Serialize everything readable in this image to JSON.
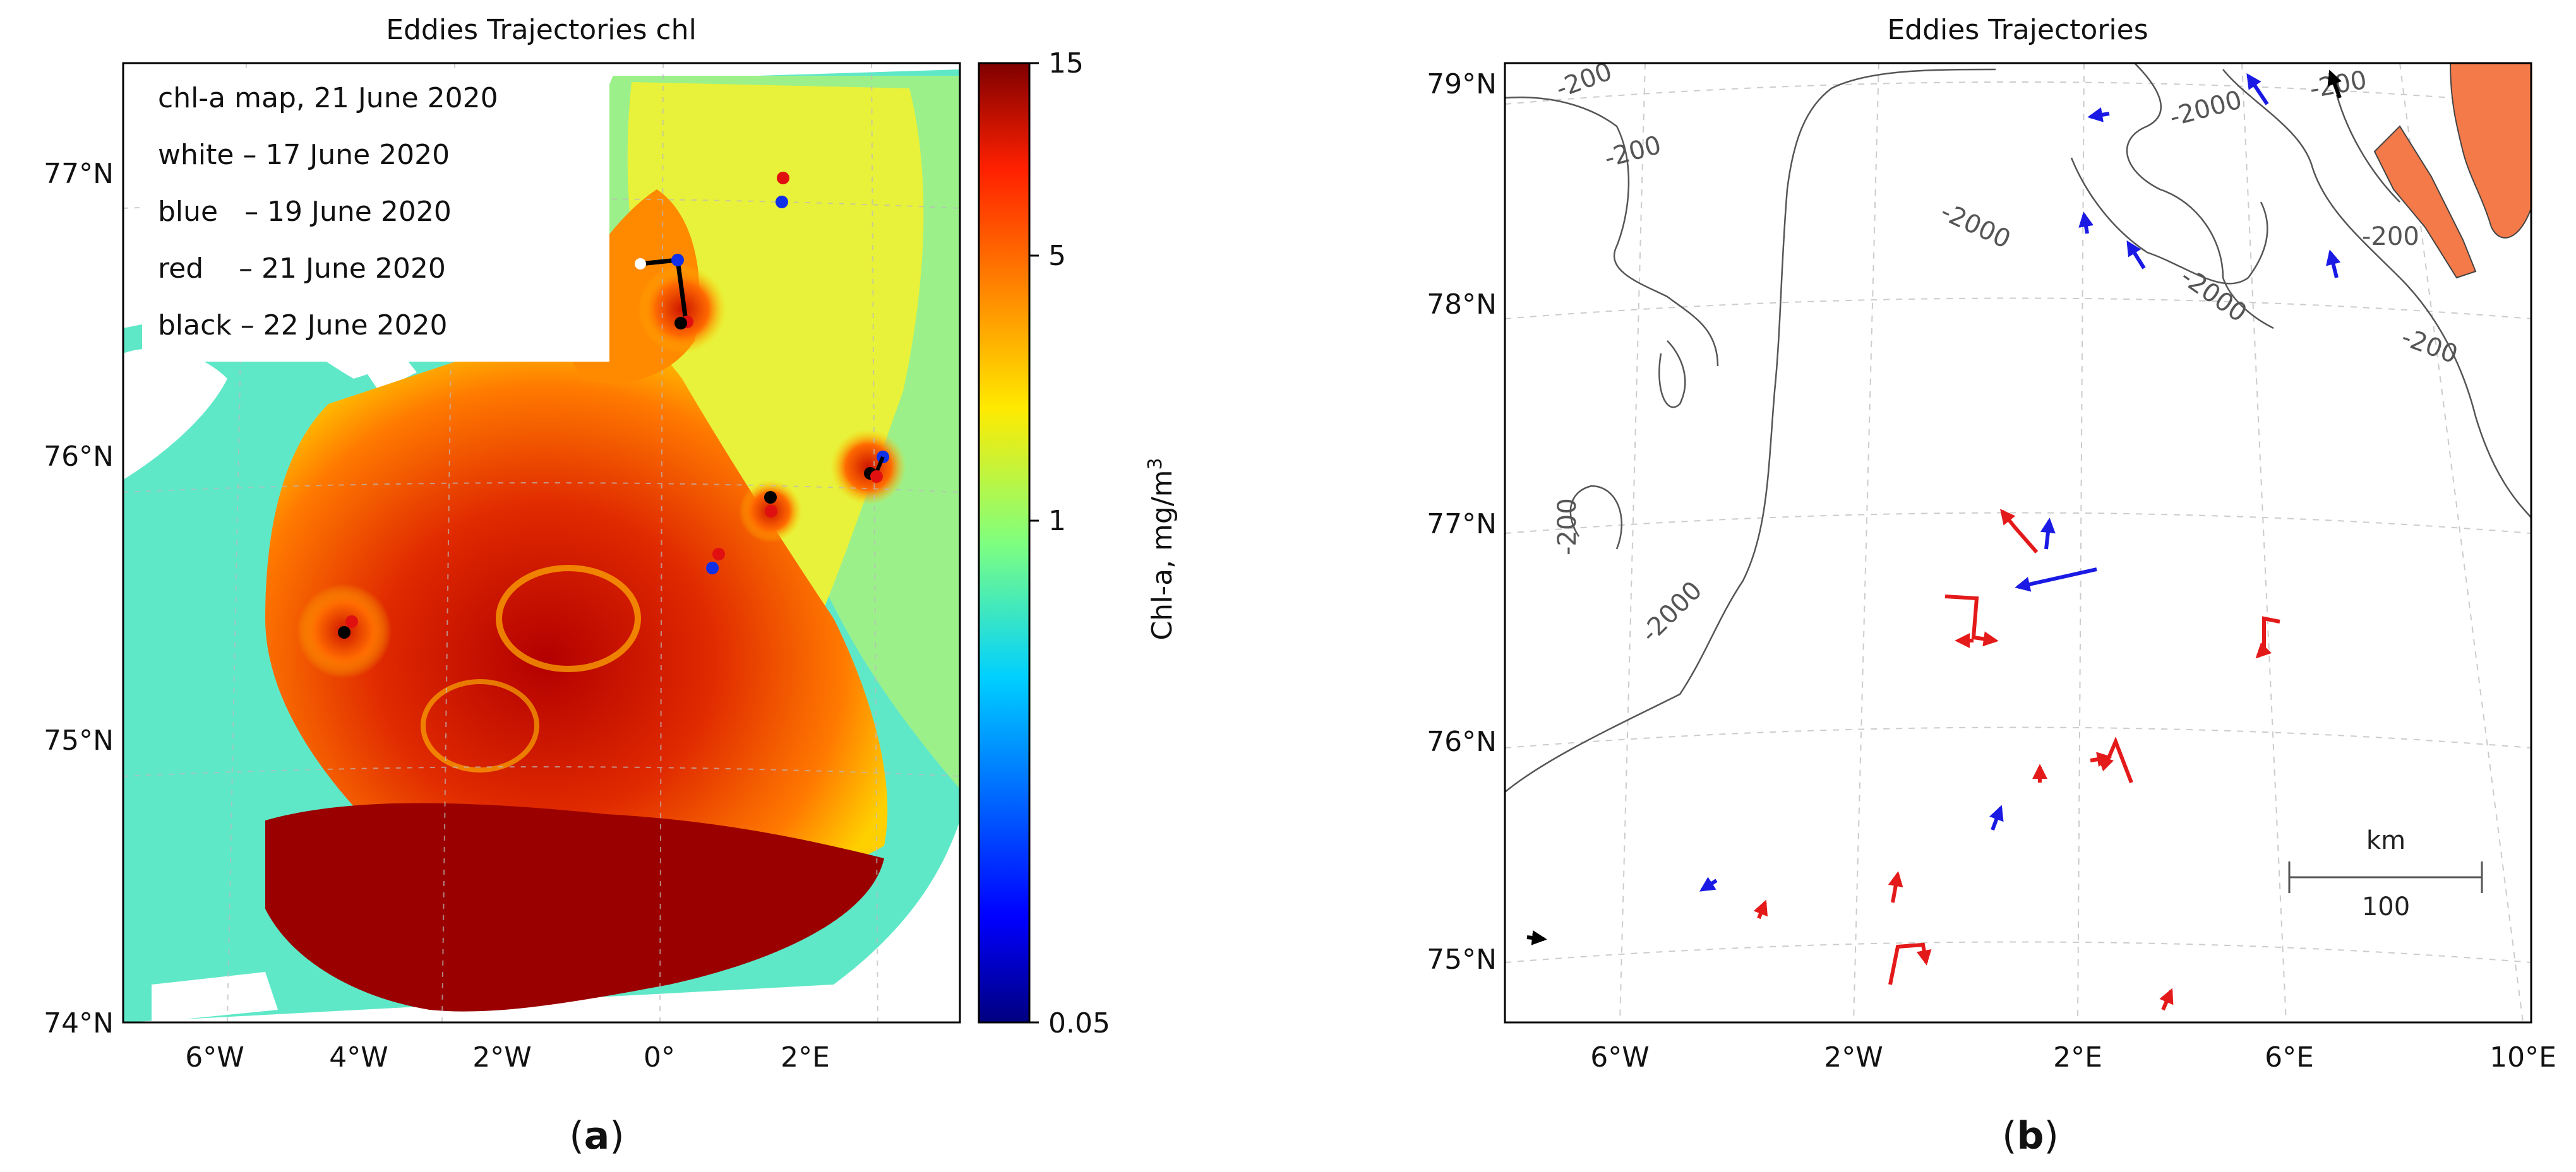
{
  "panel_a": {
    "title": "Eddies Trajectories chl",
    "panel_label": "a",
    "legend": [
      "chl-a map, 21 June 2020",
      "white – 17 June 2020",
      "blue   – 19 June 2020",
      "red    – 21 June 2020",
      "black – 22 June 2020"
    ],
    "lat_ticks": [
      "77°N",
      "76°N",
      "75°N",
      "74°N"
    ],
    "lon_ticks": [
      "6°W",
      "4°W",
      "2°W",
      "0°",
      "2°E"
    ],
    "colorbar": {
      "label": "Chl-a, mg/m",
      "label_sup": "3",
      "ticks": [
        "15",
        "5",
        "1",
        "0.05"
      ],
      "scale": "log",
      "colormap": "jet"
    },
    "marker_colors": {
      "white": "#ffffff",
      "blue": "#1030e8",
      "red": "#e01010",
      "black": "#000000"
    }
  },
  "panel_b": {
    "title": "Eddies Trajectories",
    "panel_label": "b",
    "lat_ticks": [
      "79°N",
      "78°N",
      "77°N",
      "76°N",
      "75°N"
    ],
    "lon_ticks": [
      "6°W",
      "2°W",
      "2°E",
      "6°E",
      "10°E"
    ],
    "contour_labels": [
      "-200",
      "-200",
      "-2000",
      "-200",
      "-2000",
      "-2000",
      "-200",
      "-200",
      "-200",
      "-2000"
    ],
    "scale_bar": {
      "unit": "km",
      "value": "100"
    },
    "land_color": "#f47a4a",
    "arrow_colors": {
      "red": "#e41a1a",
      "blue": "#1a1ae4",
      "black": "#000000"
    }
  }
}
